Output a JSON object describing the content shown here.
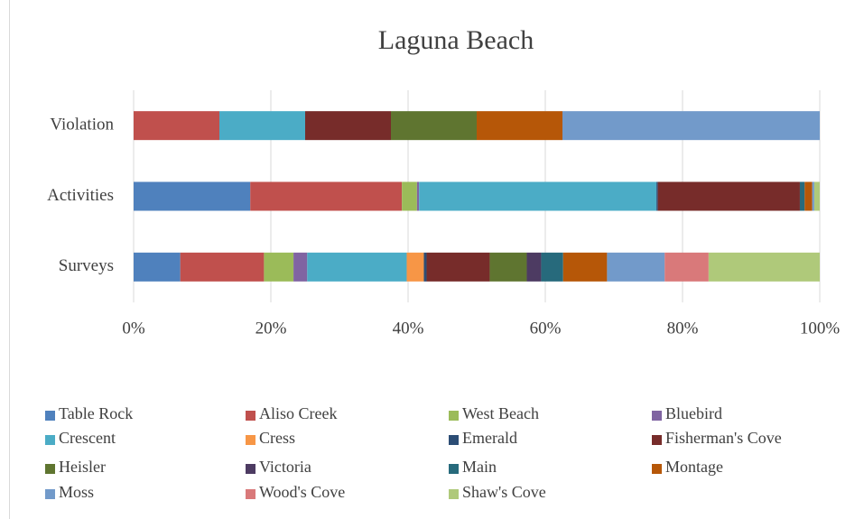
{
  "chart_data": {
    "type": "stacked_barh",
    "title": "Laguna Beach",
    "categories": [
      "Surveys",
      "Activities",
      "Violation"
    ],
    "series": [
      {
        "name": "Table Rock",
        "color": "#4f81bd",
        "values": [
          6.8,
          17.0,
          0
        ]
      },
      {
        "name": "Aliso Creek",
        "color": "#c0504d",
        "values": [
          12.2,
          22.1,
          12.5
        ]
      },
      {
        "name": "West Beach",
        "color": "#9bbb59",
        "values": [
          4.3,
          2.2,
          0
        ]
      },
      {
        "name": "Bluebird",
        "color": "#8064a2",
        "values": [
          2.0,
          0.3,
          0
        ]
      },
      {
        "name": "Crescent",
        "color": "#4bacc6",
        "values": [
          14.5,
          34.6,
          12.5
        ]
      },
      {
        "name": "Cress",
        "color": "#f79646",
        "values": [
          2.5,
          0,
          0
        ]
      },
      {
        "name": "Emerald",
        "color": "#2c4d75",
        "values": [
          0.4,
          0.2,
          0
        ]
      },
      {
        "name": "Fisherman's Cove",
        "color": "#772c2a",
        "values": [
          9.2,
          20.7,
          12.5
        ]
      },
      {
        "name": "Heisler",
        "color": "#5f7530",
        "values": [
          5.4,
          0,
          12.5
        ]
      },
      {
        "name": "Victoria",
        "color": "#4d3b62",
        "values": [
          2.1,
          0,
          0
        ]
      },
      {
        "name": "Main",
        "color": "#276a7c",
        "values": [
          3.2,
          0.7,
          0
        ]
      },
      {
        "name": "Montage",
        "color": "#b65708",
        "values": [
          6.4,
          1.1,
          12.5
        ]
      },
      {
        "name": "Moss",
        "color": "#729aca",
        "values": [
          8.4,
          0.3,
          37.5
        ]
      },
      {
        "name": "Wood's Cove",
        "color": "#d9797a",
        "values": [
          6.4,
          0,
          0
        ]
      },
      {
        "name": "Shaw's Cove",
        "color": "#afc97a",
        "values": [
          16.2,
          0.8,
          0
        ]
      }
    ],
    "xlim": [
      0,
      100
    ],
    "xticks": [
      {
        "value": 0,
        "label": "0%"
      },
      {
        "value": 20,
        "label": "20%"
      },
      {
        "value": 40,
        "label": "40%"
      },
      {
        "value": 60,
        "label": "60%"
      },
      {
        "value": 80,
        "label": "80%"
      },
      {
        "value": 100,
        "label": "100%"
      }
    ],
    "grid": true,
    "legend": "bottom"
  }
}
